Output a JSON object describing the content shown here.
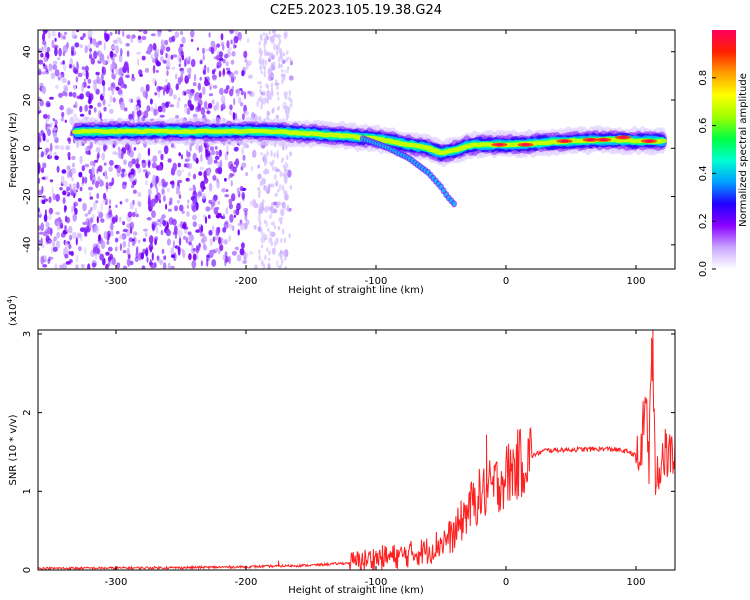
{
  "title": "C2E5.2023.105.19.38.G24",
  "chart_data": [
    {
      "type": "heatmap",
      "xlabel": "Height of straight line (km)",
      "ylabel": "Frequency (Hz)",
      "xlim": [
        -360,
        130
      ],
      "ylim": [
        -50,
        49
      ],
      "xticks": [
        -300,
        -200,
        -100,
        0,
        100
      ],
      "yticks": [
        -40,
        -20,
        0,
        20,
        40
      ],
      "colorbar": {
        "label": "Normalized spectral amplitude",
        "range": [
          0,
          1
        ],
        "ticks": [
          "0.0",
          "0.2",
          "0.4",
          "0.6",
          "0.8"
        ],
        "colors": [
          "#ffffff",
          "#c9a6ff",
          "#8a00ff",
          "#2000ff",
          "#00a0ff",
          "#00ffd0",
          "#00ff40",
          "#a0ff00",
          "#ffff00",
          "#ffa000",
          "#ff2000",
          "#ff0060"
        ]
      },
      "ridge": {
        "x": [
          -330,
          -300,
          -270,
          -240,
          -210,
          -180,
          -150,
          -120,
          -100,
          -80,
          -60,
          -50,
          -40,
          -30,
          -20,
          0,
          20,
          50,
          80,
          100,
          120
        ],
        "y": [
          7,
          7,
          7,
          7,
          7,
          7,
          6,
          5,
          4,
          2,
          0,
          -2,
          -1,
          1,
          1.5,
          1.5,
          2,
          3,
          3.5,
          3,
          3
        ]
      },
      "branch": {
        "x": [
          -110,
          -90,
          -75,
          -60,
          -50,
          -45,
          -40
        ],
        "y": [
          4,
          0,
          -4,
          -10,
          -16,
          -20,
          -23
        ]
      }
    },
    {
      "type": "line",
      "xlabel": "Height of straight line (km)",
      "ylabel": "SNR (10 * v/v)",
      "ylabel_scale": "(x10",
      "ylabel_scale_exp": "4",
      "ylabel_scale_close": ")",
      "xlim": [
        -360,
        130
      ],
      "ylim": [
        0,
        3.05
      ],
      "xticks": [
        -300,
        -200,
        -100,
        0,
        100
      ],
      "yticks": [
        0,
        1,
        2,
        3
      ],
      "color": "#ff2020",
      "envelope": {
        "x": [
          -360,
          -250,
          -200,
          -150,
          -120,
          -100,
          -80,
          -60,
          -40,
          -30,
          -20,
          -10,
          0,
          10,
          20,
          30,
          50,
          80,
          95,
          100,
          103,
          106,
          108,
          110,
          112,
          115,
          120,
          130
        ],
        "y": [
          0.02,
          0.03,
          0.04,
          0.06,
          0.09,
          0.15,
          0.18,
          0.25,
          0.45,
          0.75,
          0.95,
          1.05,
          1.2,
          1.35,
          1.45,
          1.52,
          1.53,
          1.54,
          1.5,
          1.45,
          1.35,
          1.9,
          2.15,
          1.3,
          2.9,
          1.2,
          1.45,
          1.46
        ]
      },
      "spikes": {
        "x": [
          -175,
          -15,
          108,
          112,
          113
        ],
        "y": [
          0.12,
          1.72,
          2.18,
          2.95,
          3.05
        ]
      }
    }
  ]
}
